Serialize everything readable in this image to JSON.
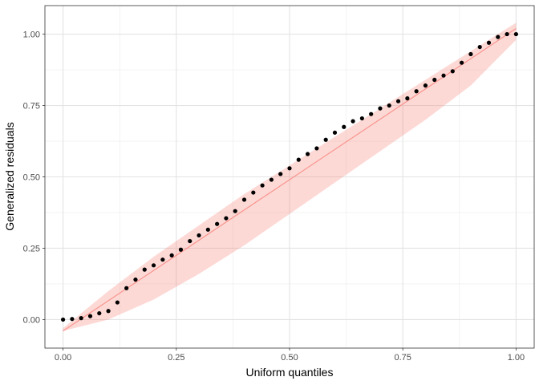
{
  "chart_data": {
    "type": "scatter",
    "xlabel": "Uniform quantiles",
    "ylabel": "Generalized residuals",
    "xlim": [
      -0.04,
      1.04
    ],
    "ylim": [
      -0.1,
      1.1
    ],
    "x_ticks": [
      0,
      0.25,
      0.5,
      0.75,
      1
    ],
    "x_tick_labels": [
      "0.00",
      "0.25",
      "0.50",
      "0.75",
      "1.00"
    ],
    "y_ticks": [
      0,
      0.25,
      0.5,
      0.75,
      1
    ],
    "y_tick_labels": [
      "0.00",
      "0.25",
      "0.50",
      "0.75",
      "1.00"
    ],
    "grid": true,
    "theme": "bw",
    "reference_line": {
      "x": [
        0.0,
        1.0
      ],
      "y": [
        -0.04,
        1.02
      ],
      "color": "#F8766D"
    },
    "confidence_band": {
      "color": "#F8766D",
      "x": [
        0.0,
        0.1,
        0.2,
        0.3,
        0.4,
        0.5,
        0.6,
        0.7,
        0.8,
        0.9,
        1.0
      ],
      "lower": [
        -0.04,
        0.0,
        0.07,
        0.16,
        0.26,
        0.37,
        0.48,
        0.59,
        0.7,
        0.82,
        0.98
      ],
      "upper": [
        -0.03,
        0.1,
        0.22,
        0.33,
        0.44,
        0.54,
        0.64,
        0.74,
        0.84,
        0.94,
        1.04
      ]
    },
    "series": [
      {
        "color": "#000000",
        "x": [
          0.0,
          0.02,
          0.04,
          0.06,
          0.08,
          0.1,
          0.12,
          0.14,
          0.16,
          0.18,
          0.2,
          0.22,
          0.24,
          0.26,
          0.28,
          0.3,
          0.32,
          0.34,
          0.36,
          0.38,
          0.4,
          0.42,
          0.44,
          0.46,
          0.48,
          0.5,
          0.52,
          0.54,
          0.56,
          0.58,
          0.6,
          0.62,
          0.64,
          0.66,
          0.68,
          0.7,
          0.72,
          0.74,
          0.76,
          0.78,
          0.8,
          0.82,
          0.84,
          0.86,
          0.88,
          0.9,
          0.92,
          0.94,
          0.96,
          0.98,
          1.0
        ],
        "values": [
          0.0,
          0.002,
          0.005,
          0.012,
          0.022,
          0.03,
          0.06,
          0.11,
          0.14,
          0.175,
          0.19,
          0.21,
          0.225,
          0.245,
          0.275,
          0.295,
          0.315,
          0.335,
          0.355,
          0.38,
          0.42,
          0.445,
          0.47,
          0.49,
          0.51,
          0.53,
          0.56,
          0.58,
          0.6,
          0.63,
          0.655,
          0.675,
          0.695,
          0.705,
          0.72,
          0.74,
          0.75,
          0.765,
          0.775,
          0.8,
          0.82,
          0.84,
          0.855,
          0.87,
          0.9,
          0.93,
          0.955,
          0.97,
          0.99,
          1.0,
          1.0
        ]
      }
    ]
  }
}
